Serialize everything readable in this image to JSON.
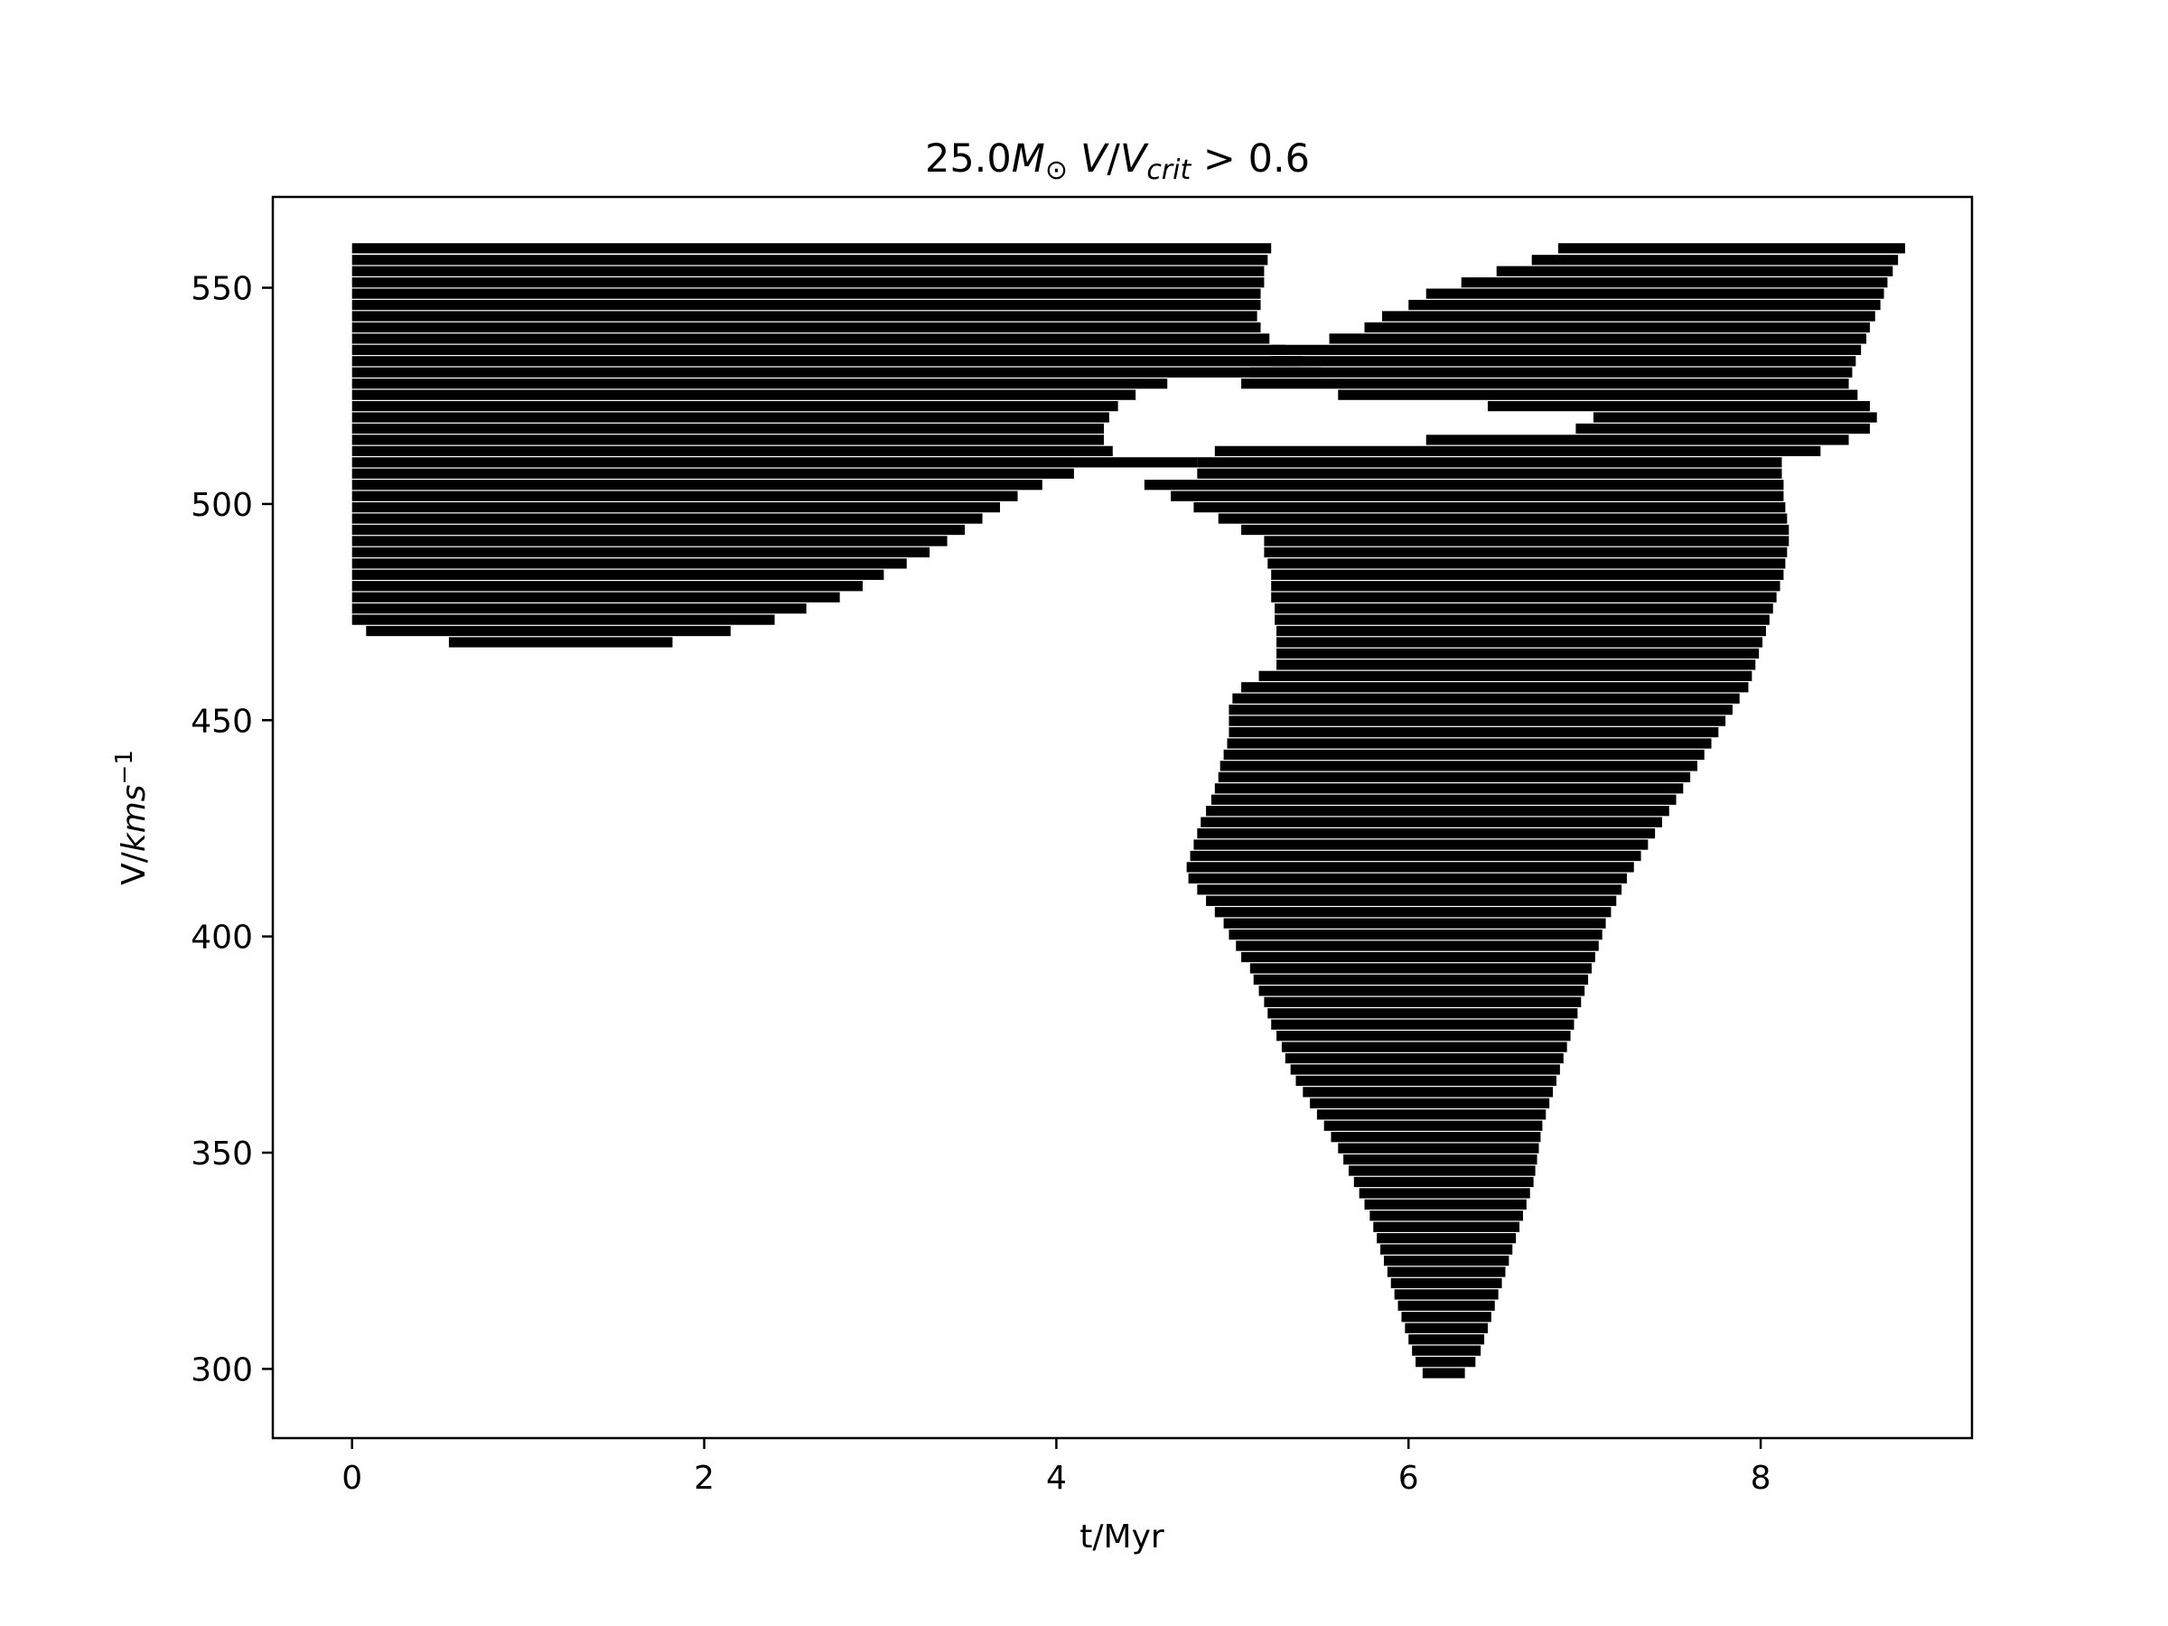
{
  "chart_data": {
    "type": "bar",
    "orientation": "horizontal-range",
    "title": {
      "prefix": "25.0",
      "mass_symbol": "M",
      "mass_subscript": "⊙",
      "ratio_V": "V",
      "ratio_slash": "/",
      "ratio_Vcrit": "V",
      "ratio_crit_subscript": "crit",
      "condition": " > 0.6"
    },
    "xlabel": "t/Myr",
    "ylabel": {
      "prefix": "V/",
      "units": "kms",
      "exponent": "−1"
    },
    "xlim": [
      -0.45,
      9.2
    ],
    "ylim": [
      284,
      571
    ],
    "xticks": [
      0,
      2,
      4,
      6,
      8
    ],
    "yticks": [
      300,
      350,
      400,
      450,
      500,
      550
    ],
    "bar_height": 2.6,
    "color": "#000000",
    "series": [
      {
        "segments": [
          [
            559,
            0,
            5.22
          ],
          [
            556.3,
            0,
            5.2
          ],
          [
            553.7,
            0,
            5.18
          ],
          [
            551.1,
            0,
            5.18
          ],
          [
            548.5,
            0,
            5.16
          ],
          [
            545.9,
            0,
            5.16
          ],
          [
            543.3,
            0,
            5.14
          ],
          [
            540.7,
            0,
            5.16
          ],
          [
            538.1,
            0,
            5.21
          ],
          [
            535.5,
            0,
            5.3
          ],
          [
            532.9,
            0,
            5.4
          ],
          [
            530.3,
            0,
            5.5
          ],
          [
            527.7,
            0,
            4.63
          ],
          [
            525.1,
            0,
            4.45
          ],
          [
            522.5,
            0,
            4.35
          ],
          [
            519.9,
            0,
            4.3
          ],
          [
            517.3,
            0,
            4.27
          ],
          [
            514.7,
            0,
            4.27
          ],
          [
            512.1,
            0,
            4.32
          ],
          [
            509.5,
            0,
            4.8
          ],
          [
            506.9,
            0,
            4.1
          ],
          [
            504.3,
            0,
            3.92
          ],
          [
            501.7,
            0,
            3.78
          ],
          [
            499.1,
            0,
            3.68
          ],
          [
            496.5,
            0,
            3.58
          ],
          [
            493.9,
            0,
            3.48
          ],
          [
            491.3,
            0,
            3.38
          ],
          [
            488.7,
            0,
            3.28
          ],
          [
            486.1,
            0,
            3.15
          ],
          [
            483.5,
            0,
            3.02
          ],
          [
            480.9,
            0,
            2.9
          ],
          [
            478.3,
            0,
            2.77
          ],
          [
            475.7,
            0,
            2.58
          ],
          [
            473.1,
            0,
            2.4
          ],
          [
            470.5,
            0.08,
            2.15
          ],
          [
            467.9,
            0.55,
            1.82
          ]
        ]
      },
      {
        "segments": [
          [
            559,
            6.85,
            8.82
          ],
          [
            556.3,
            6.7,
            8.78
          ],
          [
            553.7,
            6.5,
            8.75
          ],
          [
            551.1,
            6.3,
            8.72
          ],
          [
            548.5,
            6.1,
            8.7
          ],
          [
            545.9,
            6.0,
            8.68
          ],
          [
            543.3,
            5.85,
            8.65
          ],
          [
            540.7,
            5.75,
            8.62
          ],
          [
            538.1,
            5.55,
            8.6
          ],
          [
            535.5,
            5.22,
            8.57
          ],
          [
            532.9,
            5.22,
            8.54
          ],
          [
            530.3,
            5.1,
            8.52
          ],
          [
            527.7,
            5.05,
            8.5
          ],
          [
            525.1,
            5.6,
            8.55
          ],
          [
            522.5,
            6.45,
            8.62
          ],
          [
            519.9,
            7.05,
            8.66
          ],
          [
            517.3,
            6.95,
            8.62
          ],
          [
            514.7,
            6.1,
            8.5
          ],
          [
            512.1,
            4.9,
            8.34
          ],
          [
            509.5,
            4.8,
            8.12
          ],
          [
            506.9,
            4.8,
            8.12
          ],
          [
            504.3,
            4.5,
            8.13
          ],
          [
            501.7,
            4.65,
            8.13
          ],
          [
            499.1,
            4.78,
            8.14
          ],
          [
            496.5,
            4.92,
            8.15
          ],
          [
            493.9,
            5.05,
            8.16
          ],
          [
            491.3,
            5.18,
            8.16
          ],
          [
            488.7,
            5.18,
            8.15
          ],
          [
            486.1,
            5.2,
            8.14
          ],
          [
            483.5,
            5.22,
            8.13
          ],
          [
            480.9,
            5.22,
            8.11
          ],
          [
            478.3,
            5.22,
            8.09
          ],
          [
            475.7,
            5.24,
            8.07
          ],
          [
            473.1,
            5.24,
            8.05
          ],
          [
            470.5,
            5.25,
            8.03
          ],
          [
            467.9,
            5.25,
            8.01
          ],
          [
            465.3,
            5.25,
            7.99
          ],
          [
            462.7,
            5.25,
            7.97
          ],
          [
            460.1,
            5.15,
            7.95
          ],
          [
            457.5,
            5.05,
            7.93
          ],
          [
            454.9,
            5.0,
            7.88
          ],
          [
            452.3,
            4.98,
            7.84
          ],
          [
            449.7,
            4.98,
            7.8
          ],
          [
            447.1,
            4.98,
            7.76
          ],
          [
            444.5,
            4.97,
            7.72
          ],
          [
            441.9,
            4.95,
            7.68
          ],
          [
            439.3,
            4.93,
            7.64
          ],
          [
            436.7,
            4.92,
            7.6
          ],
          [
            434.1,
            4.9,
            7.56
          ],
          [
            431.5,
            4.88,
            7.52
          ],
          [
            428.9,
            4.85,
            7.48
          ],
          [
            426.3,
            4.82,
            7.44
          ],
          [
            423.7,
            4.8,
            7.4
          ],
          [
            421.1,
            4.78,
            7.36
          ],
          [
            418.5,
            4.76,
            7.32
          ],
          [
            415.9,
            4.74,
            7.28
          ],
          [
            413.3,
            4.75,
            7.24
          ],
          [
            410.7,
            4.8,
            7.21
          ],
          [
            408.1,
            4.85,
            7.18
          ],
          [
            405.5,
            4.9,
            7.15
          ],
          [
            402.9,
            4.95,
            7.12
          ],
          [
            400.3,
            4.98,
            7.1
          ],
          [
            397.7,
            5.02,
            7.08
          ],
          [
            395.1,
            5.05,
            7.06
          ],
          [
            392.5,
            5.1,
            7.04
          ],
          [
            389.9,
            5.12,
            7.02
          ],
          [
            387.3,
            5.15,
            7.0
          ],
          [
            384.7,
            5.18,
            6.98
          ],
          [
            382.1,
            5.2,
            6.96
          ],
          [
            379.5,
            5.22,
            6.94
          ],
          [
            376.9,
            5.25,
            6.92
          ],
          [
            374.3,
            5.28,
            6.9
          ],
          [
            371.7,
            5.3,
            6.88
          ],
          [
            369.1,
            5.33,
            6.86
          ],
          [
            366.5,
            5.36,
            6.84
          ],
          [
            363.9,
            5.4,
            6.82
          ],
          [
            361.3,
            5.44,
            6.8
          ],
          [
            358.7,
            5.48,
            6.78
          ],
          [
            356.1,
            5.52,
            6.76
          ],
          [
            353.5,
            5.56,
            6.75
          ],
          [
            350.9,
            5.6,
            6.74
          ],
          [
            348.3,
            5.63,
            6.73
          ],
          [
            345.7,
            5.66,
            6.72
          ],
          [
            343.1,
            5.69,
            6.71
          ],
          [
            340.5,
            5.72,
            6.69
          ],
          [
            337.9,
            5.75,
            6.67
          ],
          [
            335.3,
            5.78,
            6.65
          ],
          [
            332.7,
            5.8,
            6.63
          ],
          [
            330.1,
            5.82,
            6.61
          ],
          [
            327.5,
            5.84,
            6.59
          ],
          [
            324.9,
            5.86,
            6.57
          ],
          [
            322.3,
            5.88,
            6.55
          ],
          [
            319.7,
            5.9,
            6.53
          ],
          [
            317.1,
            5.92,
            6.51
          ],
          [
            314.5,
            5.94,
            6.49
          ],
          [
            311.9,
            5.96,
            6.47
          ],
          [
            309.3,
            5.98,
            6.45
          ],
          [
            306.7,
            6.0,
            6.43
          ],
          [
            304.1,
            6.02,
            6.41
          ],
          [
            301.5,
            6.04,
            6.38
          ],
          [
            298.9,
            6.08,
            6.32
          ]
        ]
      }
    ]
  }
}
